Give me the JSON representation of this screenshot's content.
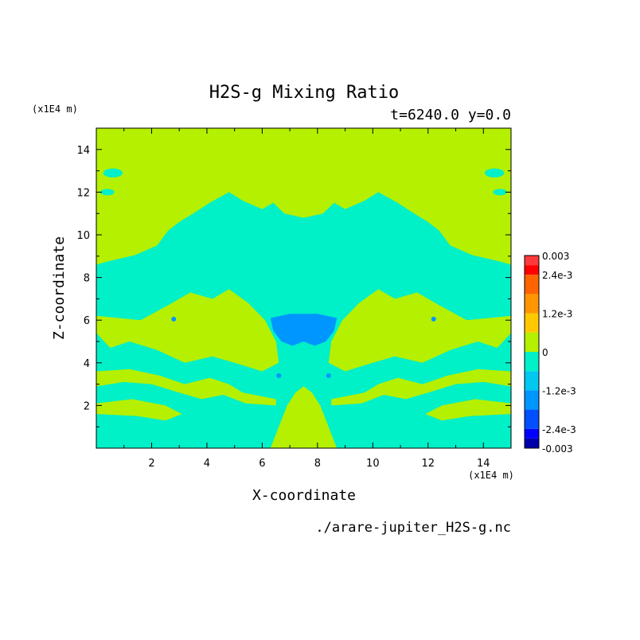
{
  "chart_data": {
    "type": "heatmap",
    "title": "H2S-g Mixing Ratio",
    "subtitle": "t=6240.0 y=0.0",
    "xlabel": "X-coordinate",
    "ylabel": "Z-coordinate",
    "x_unit": "(x1E4 m)",
    "y_unit": "(x1E4 m)",
    "xlim": [
      0,
      15
    ],
    "ylim": [
      0,
      15
    ],
    "x_ticks": [
      "2",
      "4",
      "6",
      "8",
      "10",
      "12",
      "14"
    ],
    "y_ticks": [
      "2",
      "4",
      "6",
      "8",
      "10",
      "12",
      "14"
    ],
    "source_file": "./arare-jupiter_H2S-g.nc",
    "colorbar": {
      "labels": [
        "0.003",
        "2.4e-3",
        "1.2e-3",
        "0",
        "-1.2e-3",
        "-2.4e-3",
        "-0.003"
      ],
      "label_values": [
        0.003,
        0.0024,
        0.0012,
        0,
        -0.0012,
        -0.0024,
        -0.003
      ],
      "min": -0.003,
      "max": 0.003,
      "bands": [
        {
          "lo": 0.0027,
          "hi": 0.003,
          "color": "#ff3a3a"
        },
        {
          "lo": 0.0024,
          "hi": 0.0027,
          "color": "#ff0000"
        },
        {
          "lo": 0.0018,
          "hi": 0.0024,
          "color": "#ff6400"
        },
        {
          "lo": 0.0012,
          "hi": 0.0018,
          "color": "#ff9600"
        },
        {
          "lo": 0.0006,
          "hi": 0.0012,
          "color": "#ffc800"
        },
        {
          "lo": 0.0,
          "hi": 0.0006,
          "color": "#b4f000"
        },
        {
          "lo": -0.0006,
          "hi": 0.0,
          "color": "#00f0c8"
        },
        {
          "lo": -0.0012,
          "hi": -0.0006,
          "color": "#00c8f0"
        },
        {
          "lo": -0.0018,
          "hi": -0.0012,
          "color": "#0096ff"
        },
        {
          "lo": -0.0024,
          "hi": -0.0018,
          "color": "#0050ff"
        },
        {
          "lo": -0.0027,
          "hi": -0.0024,
          "color": "#0000ff"
        },
        {
          "lo": -0.003,
          "hi": -0.0027,
          "color": "#0000aa"
        }
      ]
    },
    "field_colors": {
      "positive_low": "#b4f000",
      "negative_low": "#00f0c8",
      "negative_mid": "#00c8f0",
      "negative_strong": "#0096ff"
    }
  }
}
